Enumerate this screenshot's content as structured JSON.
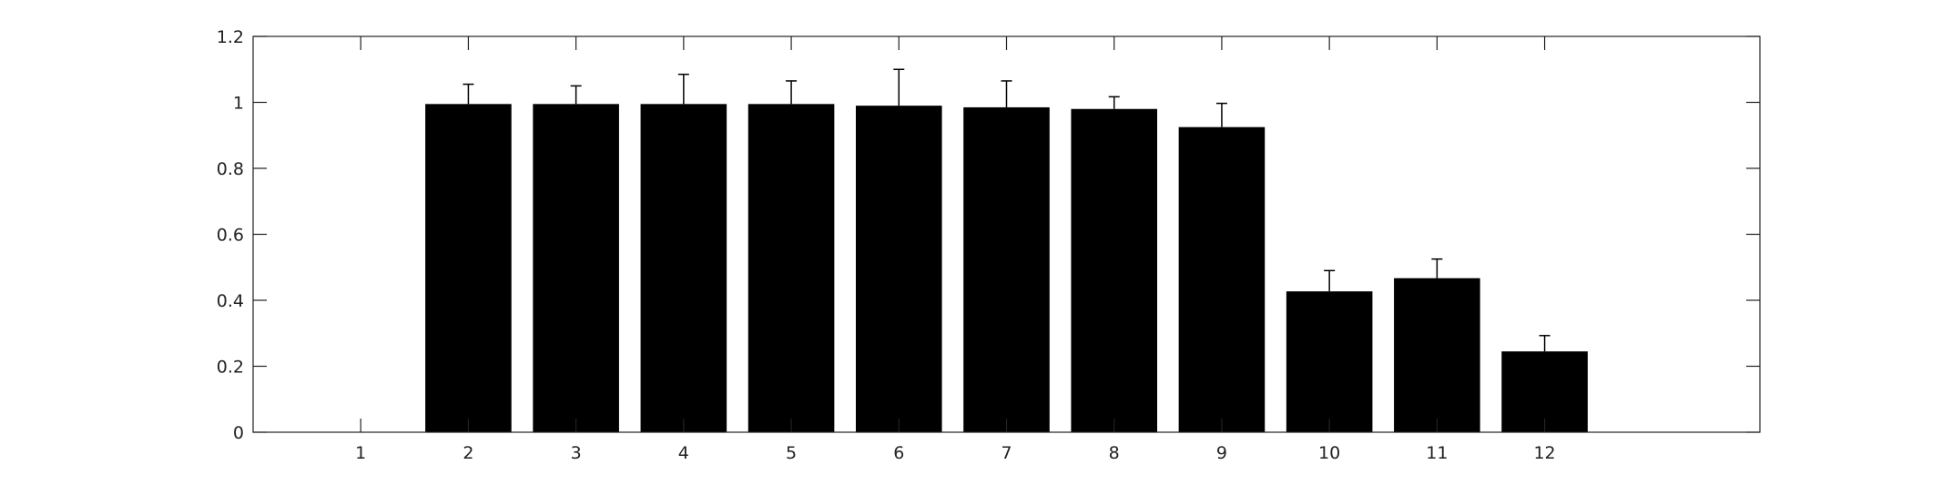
{
  "chart_data": {
    "type": "bar",
    "categories": [
      "1",
      "2",
      "3",
      "4",
      "5",
      "6",
      "7",
      "8",
      "9",
      "10",
      "11",
      "12"
    ],
    "values": [
      0,
      0.995,
      0.995,
      0.995,
      0.995,
      0.99,
      0.985,
      0.98,
      0.925,
      0.427,
      0.467,
      0.245
    ],
    "error_upper": [
      null,
      0.06,
      0.055,
      0.09,
      0.07,
      0.11,
      0.08,
      0.037,
      0.072,
      0.063,
      0.058,
      0.048
    ],
    "ylim": [
      0,
      1.2
    ],
    "yticks": [
      "0",
      "0.2",
      "0.4",
      "0.6",
      "0.8",
      "1",
      "1.2"
    ],
    "xlim": [
      0,
      14
    ],
    "grid": false,
    "colors": {
      "bar": "#000000",
      "axis": "#222222",
      "background": "#ffffff"
    }
  }
}
